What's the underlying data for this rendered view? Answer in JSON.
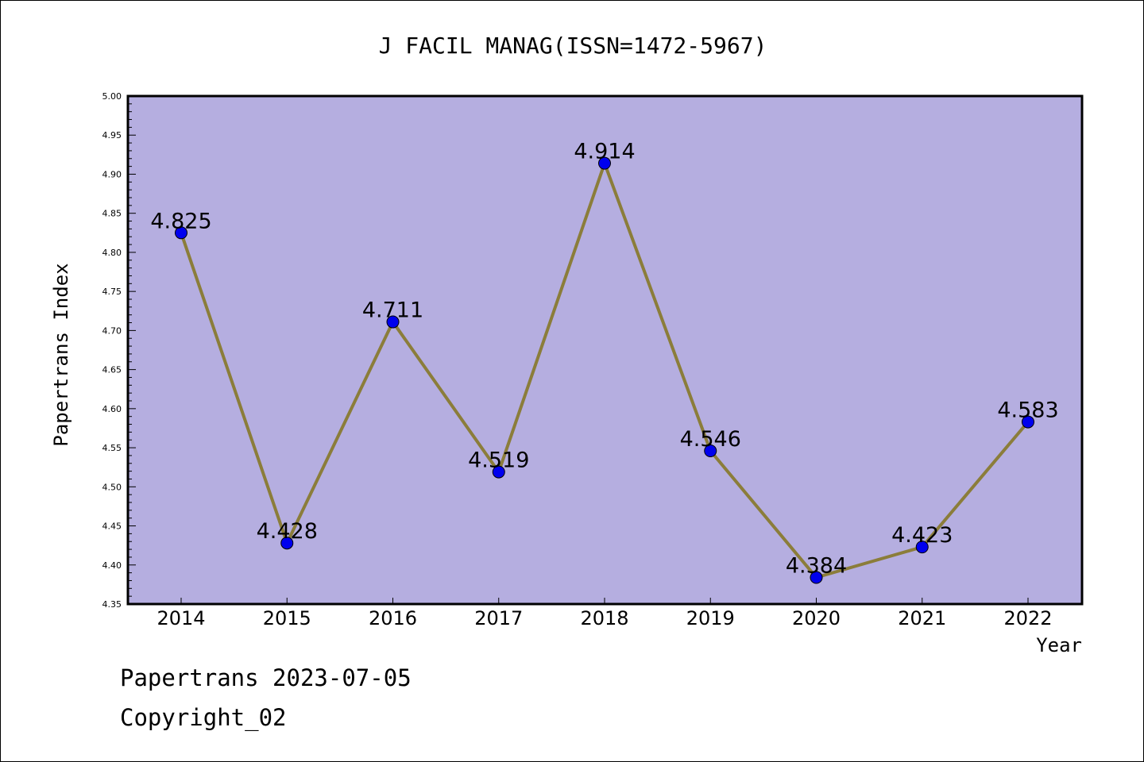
{
  "chart_data": {
    "type": "line",
    "title": "J FACIL MANAG(ISSN=1472-5967)",
    "xlabel": "Year",
    "ylabel": "Papertrans Index",
    "categories": [
      "2014",
      "2015",
      "2016",
      "2017",
      "2018",
      "2019",
      "2020",
      "2021",
      "2022"
    ],
    "values": [
      4.825,
      4.428,
      4.711,
      4.519,
      4.914,
      4.546,
      4.384,
      4.423,
      4.583
    ],
    "data_labels": [
      "4.825",
      "4.428",
      "4.711",
      "4.519",
      "4.914",
      "4.546",
      "4.384",
      "4.423",
      "4.583"
    ],
    "ylim": [
      4.35,
      5.0
    ],
    "yticks": [
      "4.35",
      "4.40",
      "4.45",
      "4.50",
      "4.55",
      "4.60",
      "4.65",
      "4.70",
      "4.75",
      "4.80",
      "4.85",
      "4.90",
      "4.95",
      "5.00"
    ],
    "grid": false,
    "legend": "none",
    "colors": {
      "plot_background": "#b5aee0",
      "line": "#8b7d3a",
      "marker": "#0000ee"
    }
  },
  "footer": {
    "date_text": "Papertrans 2023-07-05",
    "copyright_text": "Copyright_02"
  }
}
